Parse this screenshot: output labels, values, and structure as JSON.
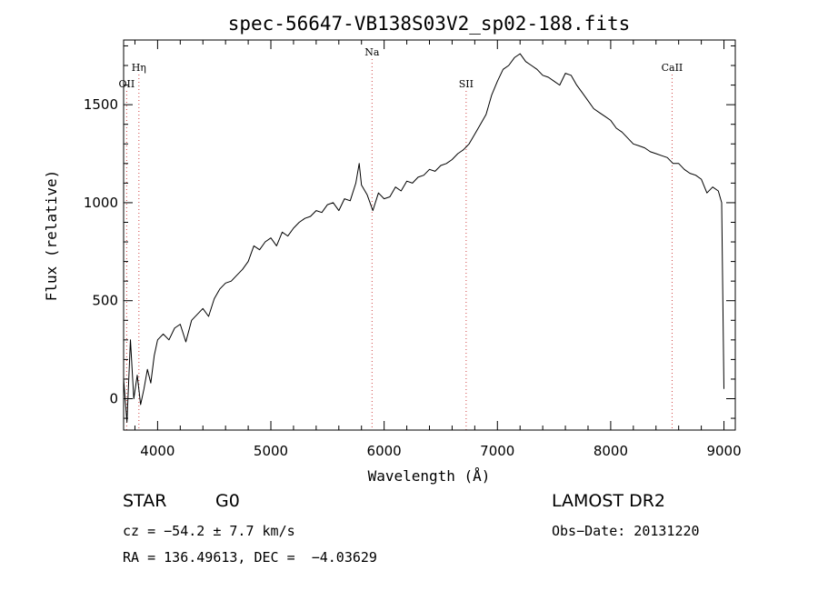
{
  "chart_data": {
    "type": "line",
    "title": "spec-56647-VB138S03V2_sp02-188.fits",
    "xlabel": "Wavelength (Å)",
    "ylabel": "Flux (relative)",
    "xlim": [
      3700,
      9100
    ],
    "ylim": [
      -160,
      1830
    ],
    "x_ticks": [
      4000,
      5000,
      6000,
      7000,
      8000,
      9000
    ],
    "y_ticks": [
      0,
      500,
      1000,
      1500
    ],
    "grid": false,
    "line_color": "#000000",
    "marker_color": "#d04040",
    "series": [
      {
        "x": [
          3700,
          3730,
          3760,
          3790,
          3820,
          3850,
          3880,
          3910,
          3940,
          3970,
          4000,
          4050,
          4100,
          4150,
          4200,
          4250,
          4300,
          4350,
          4400,
          4450,
          4500,
          4550,
          4600,
          4650,
          4700,
          4750,
          4800,
          4850,
          4900,
          4950,
          5000,
          5050,
          5100,
          5150,
          5200,
          5250,
          5300,
          5350,
          5400,
          5450,
          5500,
          5550,
          5600,
          5650,
          5700,
          5750,
          5780,
          5800,
          5850,
          5900,
          5950,
          6000,
          6050,
          6100,
          6150,
          6200,
          6250,
          6300,
          6350,
          6400,
          6450,
          6500,
          6550,
          6600,
          6650,
          6700,
          6750,
          6800,
          6850,
          6900,
          6950,
          7000,
          7050,
          7100,
          7150,
          7200,
          7250,
          7300,
          7350,
          7400,
          7450,
          7500,
          7550,
          7600,
          7650,
          7700,
          7750,
          7800,
          7850,
          7900,
          7950,
          8000,
          8050,
          8100,
          8150,
          8200,
          8250,
          8300,
          8350,
          8400,
          8450,
          8500,
          8550,
          8600,
          8650,
          8700,
          8750,
          8800,
          8850,
          8900,
          8950,
          8980,
          9000
        ],
        "y": [
          100,
          -120,
          300,
          0,
          120,
          -30,
          50,
          150,
          80,
          220,
          300,
          330,
          300,
          360,
          380,
          290,
          400,
          430,
          460,
          420,
          510,
          560,
          590,
          600,
          630,
          660,
          700,
          780,
          760,
          800,
          820,
          780,
          850,
          830,
          870,
          900,
          920,
          930,
          960,
          950,
          990,
          1000,
          960,
          1020,
          1010,
          1100,
          1200,
          1090,
          1040,
          960,
          1050,
          1020,
          1030,
          1080,
          1060,
          1110,
          1100,
          1130,
          1140,
          1170,
          1160,
          1190,
          1200,
          1220,
          1250,
          1270,
          1300,
          1350,
          1400,
          1450,
          1550,
          1620,
          1680,
          1700,
          1740,
          1760,
          1720,
          1700,
          1680,
          1650,
          1640,
          1620,
          1600,
          1660,
          1650,
          1600,
          1560,
          1520,
          1480,
          1460,
          1440,
          1420,
          1380,
          1360,
          1330,
          1300,
          1290,
          1280,
          1260,
          1250,
          1240,
          1230,
          1200,
          1200,
          1170,
          1150,
          1140,
          1120,
          1050,
          1080,
          1060,
          1000,
          50
        ]
      }
    ],
    "line_markers": [
      {
        "label": "OII",
        "x": 3727,
        "style": "dotted",
        "label_row": 2
      },
      {
        "label": "Hη",
        "x": 3835,
        "style": "dotted",
        "label_row": 1
      },
      {
        "label": "Na",
        "x": 5893,
        "style": "dotted",
        "label_row": 0
      },
      {
        "label": "SII",
        "x": 6724,
        "style": "dotted",
        "label_row": 2
      },
      {
        "label": "CaII",
        "x": 8542,
        "style": "dotted",
        "label_row": 1
      }
    ]
  },
  "info": {
    "object_class": "STAR",
    "subclass": "G0",
    "survey": "LAMOST DR2",
    "redshift_text": "cz = −54.2 ± 7.7 km/s",
    "obs_date_text": "Obs−Date: 20131220",
    "coords_text": "RA = 136.49613, DEC =  −4.03629"
  }
}
